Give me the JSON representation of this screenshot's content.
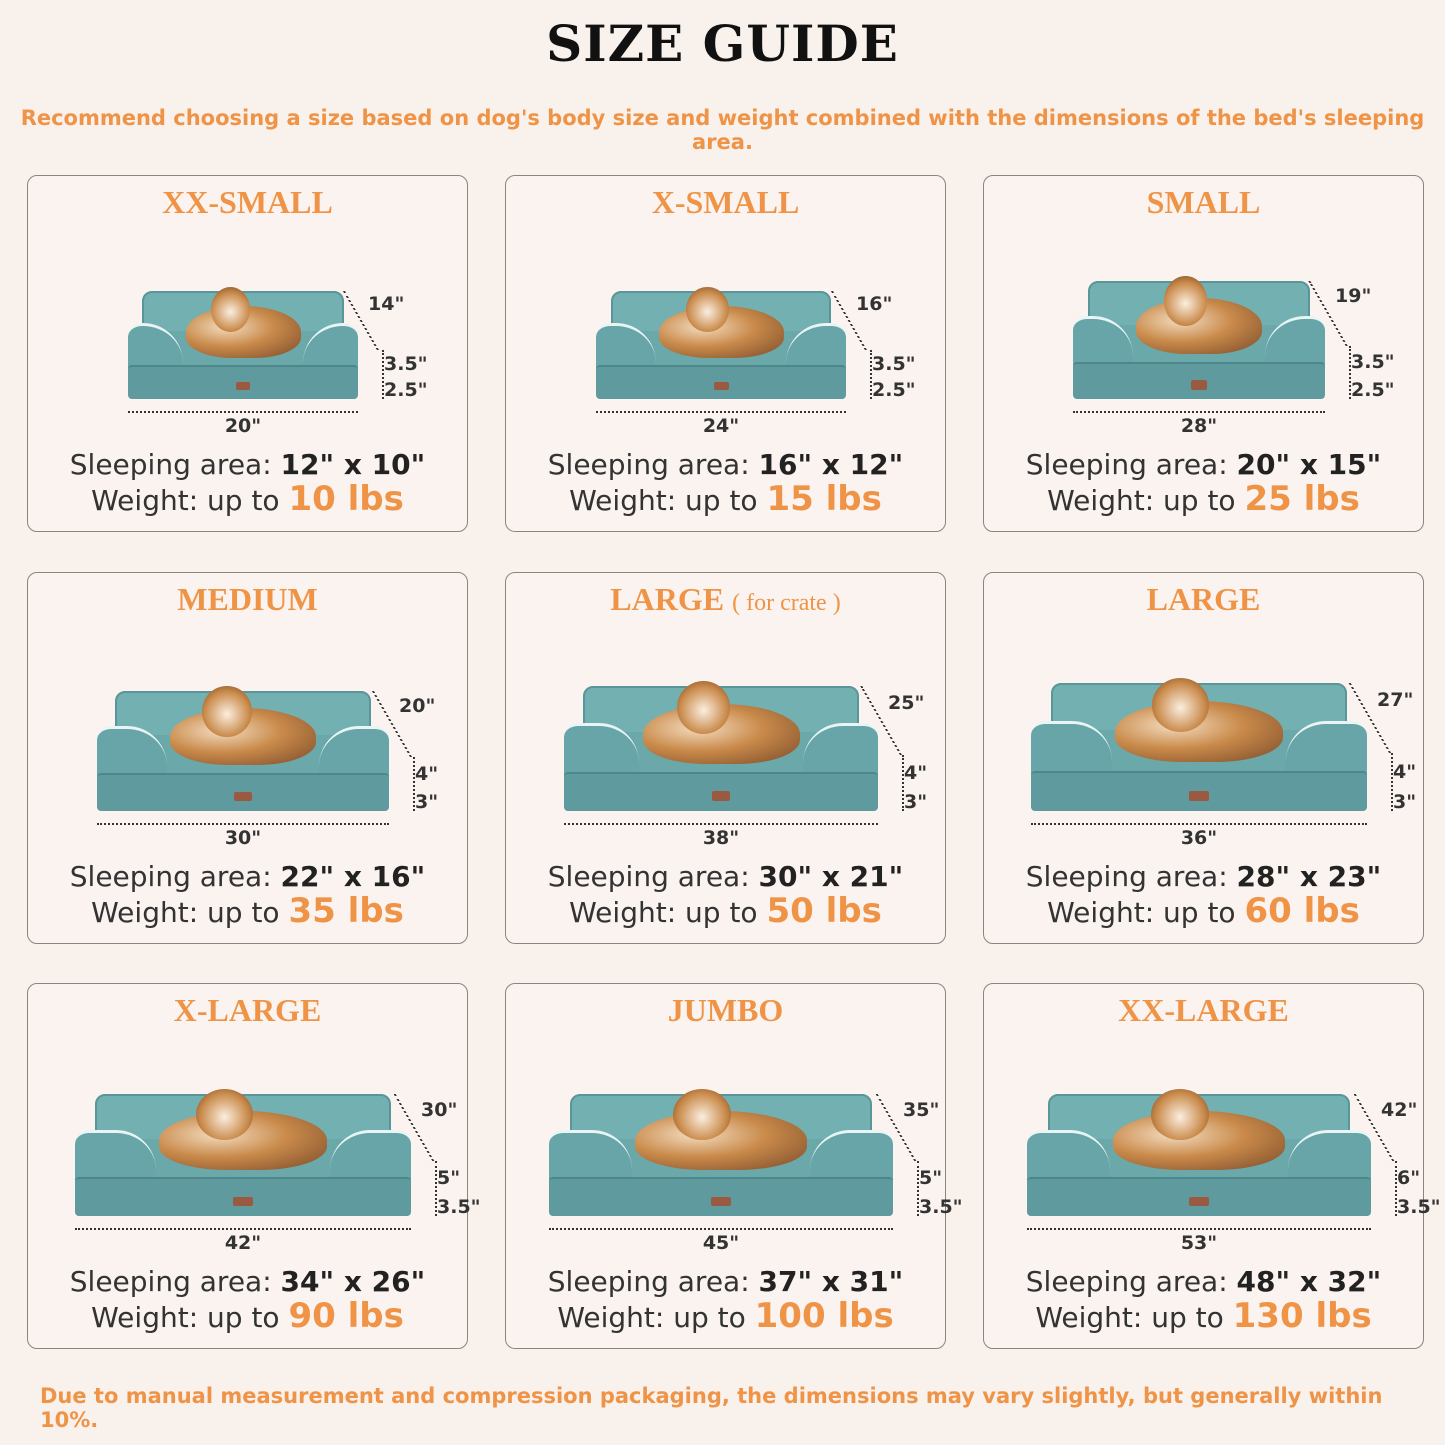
{
  "header": {
    "title": "SIZE GUIDE",
    "subtitle": "Recommend choosing a size based on dog's body size and weight combined with the dimensions of the bed's sleeping area."
  },
  "colors": {
    "accent": "#ef9447",
    "bed": "#5f9b9e",
    "background": "#f8f1ec"
  },
  "sizes": [
    {
      "name": "XX-SMALL",
      "note": "",
      "depth": "14\"",
      "height_top": "3.5\"",
      "height_base": "2.5\"",
      "width": "20\"",
      "sleeping_label": "Sleeping area:",
      "sleeping_area": "12\" x 10\"",
      "weight_label": "Weight:  up to",
      "weight": "10 lbs",
      "pet": "cat"
    },
    {
      "name": "X-SMALL",
      "note": "",
      "depth": "16\"",
      "height_top": "3.5\"",
      "height_base": "2.5\"",
      "width": "24\"",
      "sleeping_label": "Sleeping area:",
      "sleeping_area": "16\" x 12\"",
      "weight_label": "Weight: up to",
      "weight": "15 lbs",
      "pet": "dog"
    },
    {
      "name": "SMALL",
      "note": "",
      "depth": "19\"",
      "height_top": "3.5\"",
      "height_base": "2.5\"",
      "width": "28\"",
      "sleeping_label": "Sleeping area:",
      "sleeping_area": "20\" x 15\"",
      "weight_label": "Weight: up to",
      "weight": "25 lbs",
      "pet": "dog"
    },
    {
      "name": "MEDIUM",
      "note": "",
      "depth": "20\"",
      "height_top": "4\"",
      "height_base": "3\"",
      "width": "30\"",
      "sleeping_label": "Sleeping area:",
      "sleeping_area": "22\" x 16\"",
      "weight_label": "Weight: up to",
      "weight": "35 lbs",
      "pet": "dog"
    },
    {
      "name": "LARGE",
      "note": "( for crate )",
      "depth": "25\"",
      "height_top": "4\"",
      "height_base": "3\"",
      "width": "38\"",
      "sleeping_label": "Sleeping area:",
      "sleeping_area": "30\" x 21\"",
      "weight_label": "Weight: up to",
      "weight": "50 lbs",
      "pet": "dog"
    },
    {
      "name": "LARGE",
      "note": "",
      "depth": "27\"",
      "height_top": "4\"",
      "height_base": "3\"",
      "width": "36\"",
      "sleeping_label": "Sleeping area:",
      "sleeping_area": "28\" x 23\"",
      "weight_label": "Weight: up to",
      "weight": "60 lbs",
      "pet": "dog"
    },
    {
      "name": "X-LARGE",
      "note": "",
      "depth": "30\"",
      "height_top": "5\"",
      "height_base": "3.5\"",
      "width": "42\"",
      "sleeping_label": "Sleeping area:",
      "sleeping_area": "34\" x 26\"",
      "weight_label": "Weight: up to",
      "weight": "90 lbs",
      "pet": "dog"
    },
    {
      "name": "JUMBO",
      "note": "",
      "depth": "35\"",
      "height_top": "5\"",
      "height_base": "3.5\"",
      "width": "45\"",
      "sleeping_label": "Sleeping area:",
      "sleeping_area": "37\" x 31\"",
      "weight_label": "Weight: up to",
      "weight": "100 lbs",
      "pet": "dog"
    },
    {
      "name": "XX-LARGE",
      "note": "",
      "depth": "42\"",
      "height_top": "6\"",
      "height_base": "3.5\"",
      "width": "53\"",
      "sleeping_label": "Sleeping area:",
      "sleeping_area": "48\" x 32\"",
      "weight_label": "Weight: up to",
      "weight": "130 lbs",
      "pet": "dog"
    }
  ],
  "footer": "Due to manual measurement and compression packaging, the dimensions may vary slightly, but generally within 10%."
}
